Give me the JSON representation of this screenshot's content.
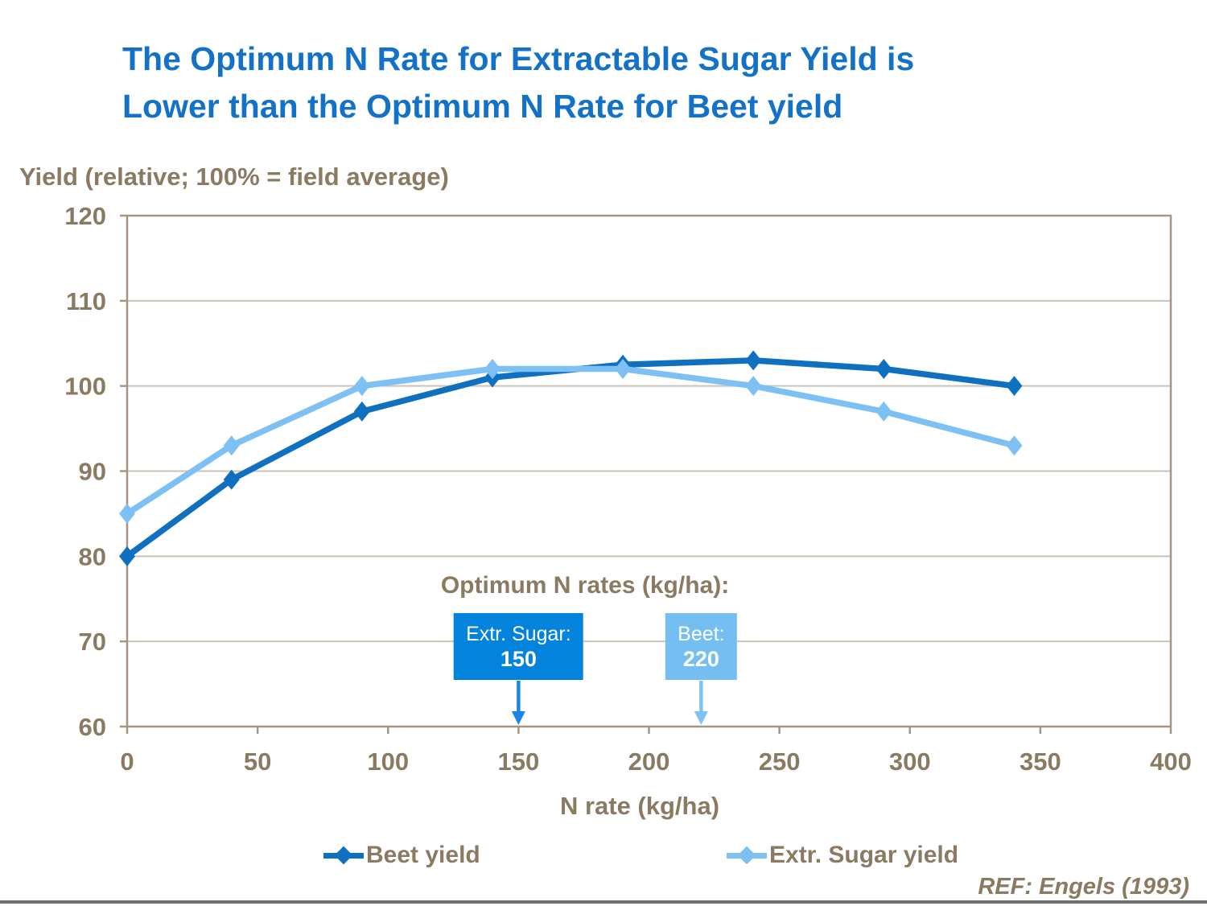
{
  "slide": {
    "title_lines": [
      "The Optimum N Rate for Extractable Sugar Yield is",
      "Lower than the Optimum N Rate for Beet yield"
    ],
    "reference": "REF: Engels (1993)"
  },
  "colors": {
    "title_blue": "#1372c8",
    "text_brown": "#8b7a62",
    "frame": "#a59684",
    "gridline": "#ccc3b6",
    "beet_line": "#1070c0",
    "sugar_line": "#7dc1f4",
    "bottom_bar": "#6e7174"
  },
  "chart_data": {
    "type": "line",
    "y_axis_title": "Yield (relative; 100% = field average)",
    "x_axis_title": "N rate (kg/ha)",
    "x": [
      0,
      40,
      90,
      140,
      190,
      240,
      290,
      340
    ],
    "series": [
      {
        "name": "Beet yield",
        "color": "#1070c0",
        "values": [
          80,
          89,
          97,
          101,
          102.5,
          103,
          102,
          100
        ]
      },
      {
        "name": "Extr. Sugar yield",
        "color": "#7dc1f4",
        "values": [
          85,
          93,
          100,
          102,
          102,
          100,
          97,
          93
        ]
      }
    ],
    "xlim": [
      0,
      400
    ],
    "ylim": [
      60,
      120
    ],
    "x_ticks": [
      0,
      50,
      100,
      150,
      200,
      250,
      300,
      350,
      400
    ],
    "y_ticks": [
      60,
      70,
      80,
      90,
      100,
      110,
      120
    ],
    "grid": true,
    "legend_position": "bottom",
    "annotation": {
      "heading": "Optimum N rates (kg/ha):",
      "boxes": [
        {
          "label": "Extr. Sugar:",
          "value": "150",
          "x": 150,
          "color": "#0483dd",
          "arrow_color": "#1b86e8"
        },
        {
          "label": "Beet:",
          "value": "220",
          "x": 220,
          "color": "#74bef2",
          "arrow_color": "#7fc2f5"
        }
      ]
    }
  }
}
